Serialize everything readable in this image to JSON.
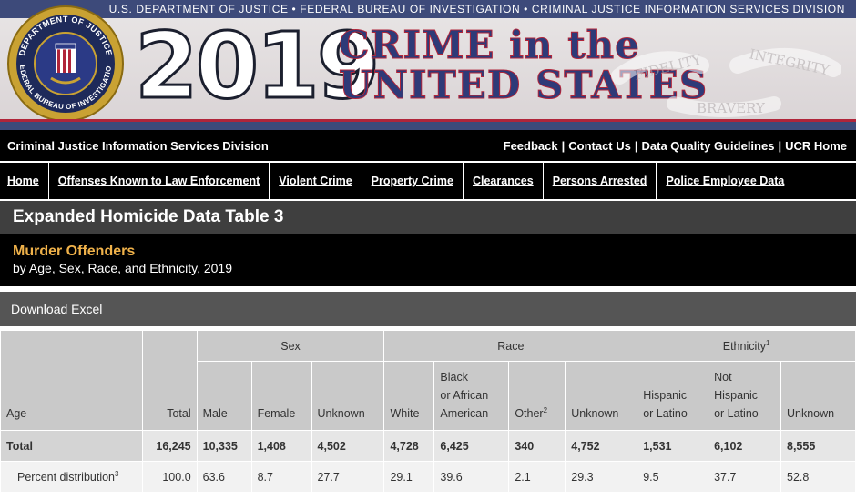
{
  "banner": {
    "tagline": "U.S. DEPARTMENT OF JUSTICE • FEDERAL BUREAU OF INVESTIGATION • CRIMINAL JUSTICE INFORMATION SERVICES DIVISION",
    "year": "2019",
    "title_line1": "CRIME in the",
    "title_line2": "UNITED STATES",
    "seal_top": "DEPARTMENT OF JUSTICE",
    "seal_bottom": "FEDERAL BUREAU OF INVESTIGATION",
    "watermark_words": [
      "FIDELITY",
      "BRAVERY",
      "INTEGRITY"
    ]
  },
  "cjis_bar": {
    "division": "Criminal Justice Information Services Division",
    "links": [
      "Feedback",
      "Contact Us",
      "Data Quality Guidelines",
      "UCR Home"
    ]
  },
  "nav": [
    "Home",
    "Offenses Known to Law Enforcement",
    "Violent Crime",
    "Property Crime",
    "Clearances",
    "Persons Arrested",
    "Police Employee Data"
  ],
  "page_title": "Expanded Homicide Data Table 3",
  "subtitle": {
    "main": "Murder Offenders",
    "sub": "by Age, Sex, Race, and Ethnicity, 2019"
  },
  "download_label": "Download Excel",
  "table": {
    "groups": {
      "sex": "Sex",
      "race": "Race",
      "ethnicity": "Ethnicity",
      "ethnicity_note": "1"
    },
    "headers": {
      "age": "Age",
      "total": "Total",
      "male": "Male",
      "female": "Female",
      "sex_unknown": "Unknown",
      "white": "White",
      "black_l1": "Black",
      "black_l2": "or African",
      "black_l3": "American",
      "other": "Other",
      "other_note": "2",
      "race_unknown": "Unknown",
      "hispanic_l1": "Hispanic",
      "hispanic_l2": "or Latino",
      "not_hispanic_l1": "Not",
      "not_hispanic_l2": "Hispanic",
      "not_hispanic_l3": "or Latino",
      "eth_unknown": "Unknown"
    },
    "rows": [
      {
        "label": "Total",
        "note": "",
        "values": [
          "16,245",
          "10,335",
          "1,408",
          "4,502",
          "4,728",
          "6,425",
          "340",
          "4,752",
          "1,531",
          "6,102",
          "8,555"
        ]
      },
      {
        "label": "Percent distribution",
        "note": "3",
        "values": [
          "100.0",
          "63.6",
          "8.7",
          "27.7",
          "29.1",
          "39.6",
          "2.1",
          "29.3",
          "9.5",
          "37.7",
          "52.8"
        ]
      }
    ]
  },
  "colors": {
    "banner_navy": "#3d4a7a",
    "accent_red": "#b0253a",
    "subtitle_gold": "#f0b24a",
    "header_gray": "#c9c9c9"
  }
}
